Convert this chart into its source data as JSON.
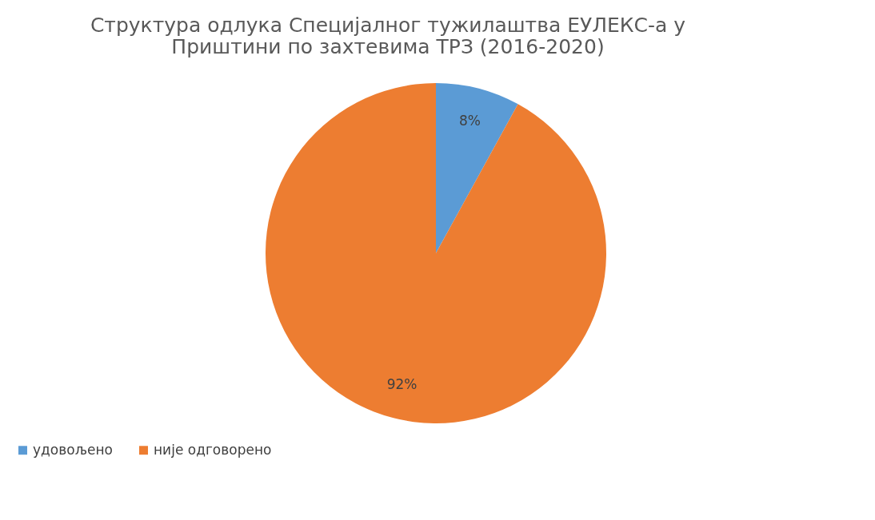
{
  "chart_data": {
    "type": "pie",
    "title": [
      "Структура одлука Специјалног тужилаштва ЕУЛЕКС-а у",
      "Приштини по захтевима ТРЗ (2016-2020)"
    ],
    "categories": [
      "удовољено",
      "није одговорено"
    ],
    "values": [
      8,
      92
    ],
    "colors": [
      "#5b9bd5",
      "#ed7d31"
    ],
    "value_labels": [
      "8%",
      "92%"
    ],
    "legend": "bottom"
  }
}
